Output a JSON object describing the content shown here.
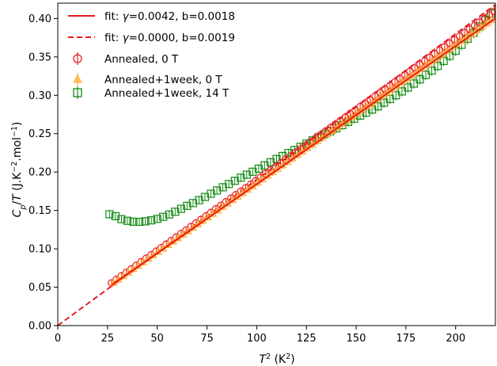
{
  "chart_data": {
    "type": "scatter",
    "title": "",
    "xlabel": "T² (K²)",
    "xlabel_parts": {
      "var": "T",
      "sup": "2",
      "unit": " (K",
      "unit_sup": "2",
      "close": ")"
    },
    "ylabel": "Cp/T (J.K⁻².mol⁻¹)",
    "ylabel_parts": {
      "var": "C",
      "sub": "p",
      "slash": "/",
      "var2": "T",
      "unit": " (J.K",
      "sup1": "−2",
      "mid": ".mol",
      "sup2": "−1",
      "close": ")"
    },
    "xlim": [
      0,
      220
    ],
    "ylim": [
      0,
      0.42
    ],
    "xticks": [
      0,
      25,
      50,
      75,
      100,
      125,
      150,
      175,
      200
    ],
    "xtick_labels": [
      "0",
      "25",
      "50",
      "75",
      "100",
      "125",
      "150",
      "175",
      "200"
    ],
    "yticks": [
      0,
      0.05,
      0.1,
      0.15,
      0.2,
      0.25,
      0.3,
      0.35,
      0.4
    ],
    "ytick_labels": [
      "0.00",
      "0.05",
      "0.10",
      "0.15",
      "0.20",
      "0.25",
      "0.30",
      "0.35",
      "0.40"
    ],
    "grid": false,
    "legend_position": "top-left",
    "lines": [
      {
        "name": "fit: γ=0.0042, b=0.0018",
        "gamma_text": "0.0042",
        "b_text": "0.0018",
        "gamma": 0.0042,
        "b": 0.0018,
        "x_range": [
          27,
          220
        ],
        "style": "solid",
        "color": "#e8191e"
      },
      {
        "name": "fit: γ=0.0000, b=0.0019",
        "gamma_text": "0.0000",
        "b_text": "0.0019",
        "gamma": 0.0,
        "b": 0.0019,
        "x_range": [
          0,
          220
        ],
        "style": "dashed",
        "color": "#e8191e"
      }
    ],
    "series": [
      {
        "name": "Annealed, 0 T",
        "marker": "circle",
        "color": "#e8191e",
        "x_range": [
          27,
          220
        ],
        "step": 2.5,
        "points": [
          [
            27,
            0.0556
          ],
          [
            220,
            0.41
          ]
        ]
      },
      {
        "name": "Annealed+1week, 0 T",
        "marker": "triangle",
        "color": "#ffa928",
        "x_range": [
          28,
          220
        ],
        "step": 2.5,
        "points": [
          [
            28,
            0.0556
          ],
          [
            220,
            0.402
          ]
        ]
      },
      {
        "name": "Annealed+1week, 14 T",
        "marker": "square",
        "color": "#138a13",
        "x_range": [
          26,
          220
        ],
        "step": 3.0,
        "points": [
          [
            26,
            0.145
          ],
          [
            28,
            0.144
          ],
          [
            31,
            0.1395
          ],
          [
            34,
            0.137
          ],
          [
            37,
            0.1355
          ],
          [
            40,
            0.135
          ],
          [
            43,
            0.1355
          ],
          [
            46,
            0.1365
          ],
          [
            50,
            0.139
          ],
          [
            55,
            0.1435
          ],
          [
            60,
            0.1495
          ],
          [
            65,
            0.156
          ],
          [
            70,
            0.162
          ],
          [
            80,
            0.176
          ],
          [
            90,
            0.19
          ],
          [
            100,
            0.203
          ],
          [
            110,
            0.217
          ],
          [
            120,
            0.23
          ],
          [
            130,
            0.244
          ],
          [
            140,
            0.257
          ],
          [
            150,
            0.271
          ],
          [
            160,
            0.284
          ],
          [
            170,
            0.3
          ],
          [
            180,
            0.317
          ],
          [
            190,
            0.336
          ],
          [
            200,
            0.358
          ],
          [
            210,
            0.384
          ],
          [
            220,
            0.412
          ]
        ]
      }
    ]
  }
}
